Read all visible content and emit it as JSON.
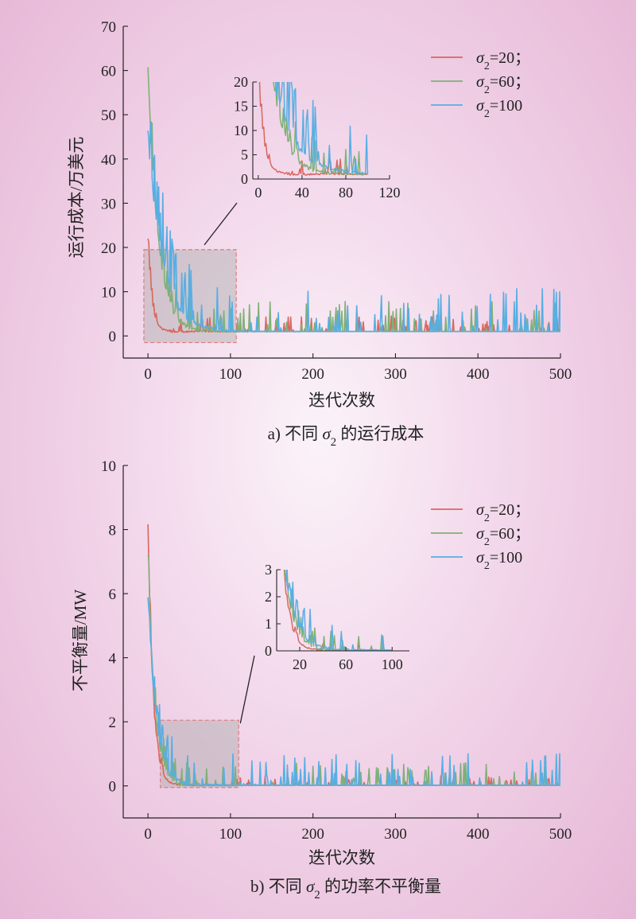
{
  "chart_data": [
    {
      "id": "a",
      "type": "line",
      "caption": {
        "prefix": "a) 不同 ",
        "sym": "σ",
        "sub": "2",
        "suffix": " 的运行成本"
      },
      "xlabel": "迭代次数",
      "ylabel": "运行成本/万美元",
      "xlim": [
        -30,
        500
      ],
      "ylim": [
        -5,
        70
      ],
      "xticks": [
        0,
        100,
        200,
        300,
        400,
        500
      ],
      "yticks": [
        0,
        10,
        20,
        30,
        40,
        50,
        60,
        70
      ],
      "legend_position": "top-right",
      "series": [
        {
          "name": "σ2=20；",
          "label": {
            "sym": "σ",
            "sub": "2",
            "rest": "=20；"
          },
          "color": "#d9675e",
          "start": 21.5,
          "decay": 5,
          "floor": 1.0,
          "spike": 3.5
        },
        {
          "name": "σ2=60；",
          "label": {
            "sym": "σ",
            "sub": "2",
            "rest": "=60；"
          },
          "color": "#7fb077",
          "start": 60.5,
          "decay": 12,
          "floor": 1.0,
          "spike": 7
        },
        {
          "name": "σ2=100",
          "label": {
            "sym": "σ",
            "sub": "2",
            "rest": "=100"
          },
          "color": "#58aee2",
          "start": 46,
          "decay": 18,
          "floor": 1.0,
          "spike": 10.5
        }
      ],
      "zoom_box": {
        "x": [
          -5,
          107
        ],
        "y": [
          -1.5,
          19.5
        ]
      },
      "inset": {
        "xlim": [
          -5,
          120
        ],
        "ylim": [
          0,
          20
        ],
        "xticks": [
          0,
          40,
          80,
          120
        ],
        "yticks": [
          0,
          5,
          10,
          15,
          20
        ],
        "data_xrange": [
          0,
          100
        ]
      }
    },
    {
      "id": "b",
      "type": "line",
      "caption": {
        "prefix": "b) 不同 ",
        "sym": "σ",
        "sub": "2",
        "suffix": " 的功率不平衡量"
      },
      "xlabel": "迭代次数",
      "ylabel": "不平衡量/MW",
      "xlim": [
        -30,
        500
      ],
      "ylim": [
        -1,
        10
      ],
      "xticks": [
        0,
        100,
        200,
        300,
        400,
        500
      ],
      "yticks": [
        0,
        2,
        4,
        6,
        8,
        10
      ],
      "legend_position": "top-right",
      "series": [
        {
          "name": "σ2=20；",
          "label": {
            "sym": "σ",
            "sub": "2",
            "rest": "=20；"
          },
          "color": "#d9675e",
          "start": 8.2,
          "decay": 6,
          "floor": 0.02,
          "spike": 0.3
        },
        {
          "name": "σ2=60；",
          "label": {
            "sym": "σ",
            "sub": "2",
            "rest": "=60；"
          },
          "color": "#7fb077",
          "start": 7.2,
          "decay": 8,
          "floor": 0.02,
          "spike": 0.7
        },
        {
          "name": "σ2=100",
          "label": {
            "sym": "σ",
            "sub": "2",
            "rest": "=100"
          },
          "color": "#58aee2",
          "start": 6.0,
          "decay": 10,
          "floor": 0.02,
          "spike": 1.0
        }
      ],
      "zoom_box": {
        "x": [
          15,
          110
        ],
        "y": [
          -0.05,
          2.05
        ]
      },
      "inset": {
        "xlim": [
          0,
          115
        ],
        "ylim": [
          0,
          3
        ],
        "xticks": [
          20,
          60,
          100
        ],
        "yticks": [
          0,
          1,
          2,
          3
        ],
        "data_xrange": [
          0,
          100
        ]
      }
    }
  ]
}
